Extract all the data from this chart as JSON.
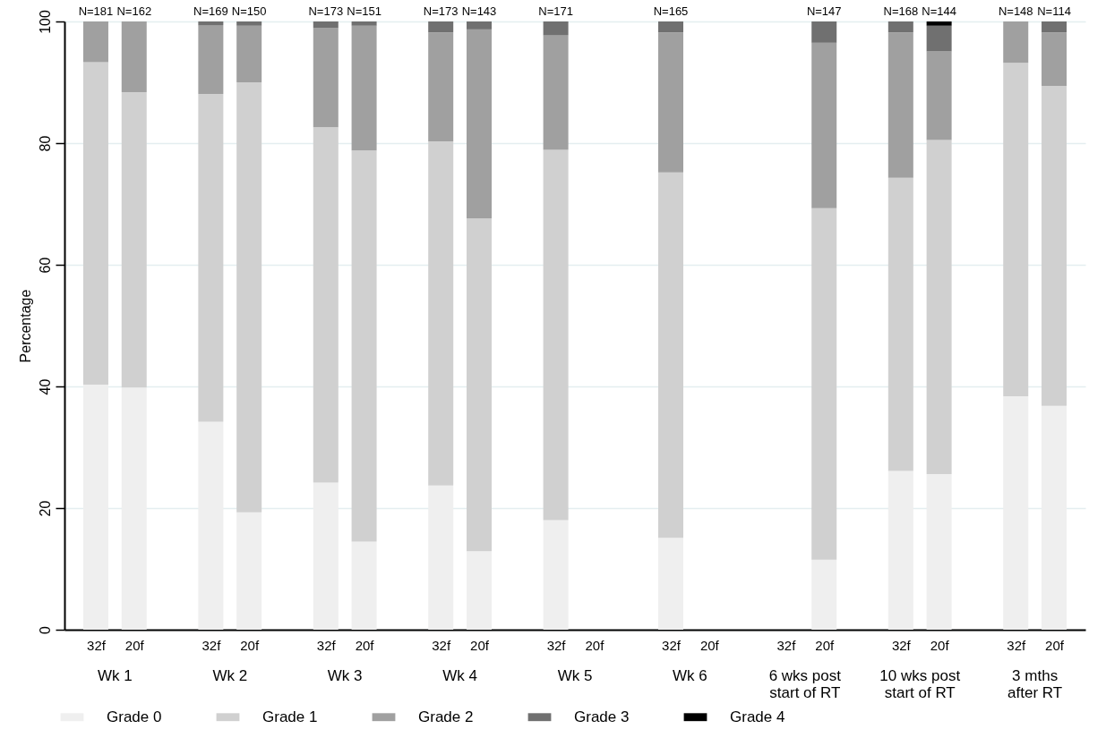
{
  "chart_data": {
    "type": "bar",
    "stacked": true,
    "ylabel": "Percentage",
    "categories": [
      "32f",
      "20f",
      "32f",
      "20f",
      "32f",
      "20f",
      "32f",
      "20f",
      "32f",
      "20f",
      "32f",
      "20f",
      "32f",
      "20f",
      "32f",
      "20f",
      "32f",
      "20f"
    ],
    "series": [
      {
        "name": "Grade 0",
        "color": "#efefef",
        "values": [
          40.3,
          39.8,
          34.2,
          19.3,
          24.2,
          14.5,
          23.7,
          12.9,
          18.0,
          null,
          15.1,
          null,
          null,
          11.5,
          26.1,
          25.6,
          38.4,
          36.8
        ]
      },
      {
        "name": "Grade 1",
        "color": "#d0d0d0",
        "values": [
          53.0,
          48.6,
          53.9,
          70.7,
          58.4,
          64.3,
          56.6,
          54.7,
          60.9,
          null,
          60.1,
          null,
          null,
          57.8,
          48.2,
          54.9,
          54.8,
          52.6
        ]
      },
      {
        "name": "Grade 2",
        "color": "#a0a0a0",
        "values": [
          6.7,
          11.6,
          11.3,
          9.3,
          16.3,
          20.5,
          17.9,
          31.1,
          18.8,
          null,
          23.0,
          null,
          null,
          27.2,
          23.9,
          14.6,
          6.8,
          8.8
        ]
      },
      {
        "name": "Grade 3",
        "color": "#707070",
        "values": [
          null,
          null,
          0.6,
          0.7,
          1.1,
          0.7,
          1.8,
          1.3,
          2.3,
          null,
          1.8,
          null,
          null,
          3.5,
          1.8,
          4.2,
          null,
          1.8
        ]
      },
      {
        "name": "Grade 4",
        "color": "#000000",
        "values": [
          null,
          null,
          null,
          null,
          null,
          null,
          null,
          null,
          null,
          null,
          null,
          null,
          null,
          null,
          null,
          0.7,
          null,
          null
        ]
      }
    ],
    "annotations": [
      "Wk 1",
      "Wk 2",
      "Wk 3",
      "Wk 4",
      "Wk 5",
      "Wk 6",
      "6 wks post\nstart of RT",
      "10 wks post\nstart of RT",
      "3 mths\nafter RT",
      "N=181",
      "N=162",
      "N=169",
      "N=150",
      "N=173",
      "N=151",
      "N=173",
      "N=143",
      "N=171",
      "N=165",
      "N=147",
      "N=168",
      "N=144",
      "N=148",
      "N=114"
    ],
    "ylim": [
      0,
      100
    ],
    "yticks": [
      0,
      20,
      40,
      60,
      80,
      100
    ],
    "grid": "y",
    "legend": "bottom"
  }
}
